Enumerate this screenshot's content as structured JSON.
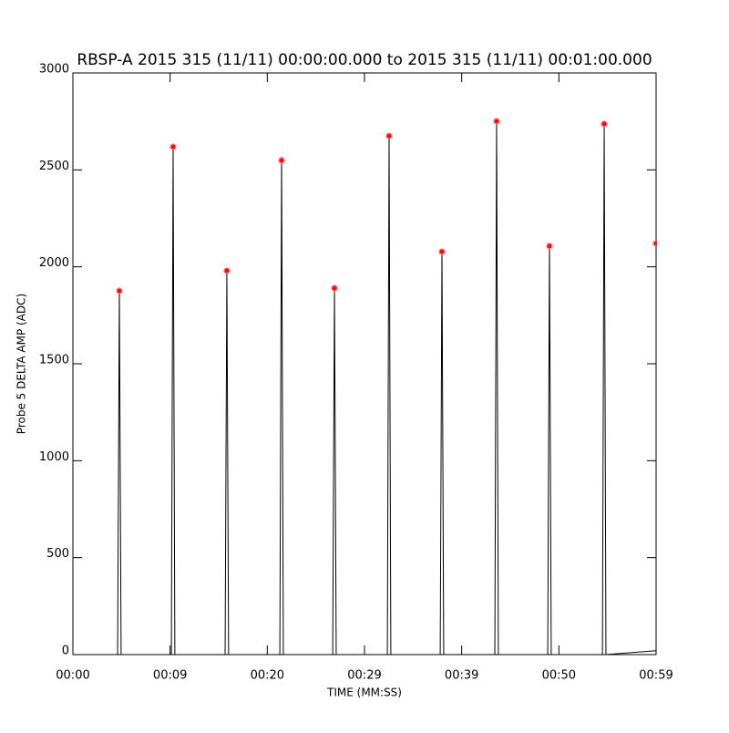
{
  "chart_data": {
    "type": "line",
    "title": "RBSP-A 2015 315 (11/11) 00:00:00.000 to 2015 315 (11/11) 00:01:00.000",
    "xlabel": "TIME (MM:SS)",
    "ylabel": "Probe 5 DELTA AMP (ADC)",
    "xlim": [
      0,
      60
    ],
    "ylim": [
      0,
      3000
    ],
    "xticks": [
      {
        "value": 0,
        "label": "00:00"
      },
      {
        "value": 10,
        "label": "00:09"
      },
      {
        "value": 20,
        "label": "00:20"
      },
      {
        "value": 30,
        "label": "00:29"
      },
      {
        "value": 40,
        "label": "00:39"
      },
      {
        "value": 50,
        "label": "00:50"
      },
      {
        "value": 60,
        "label": "00:59"
      }
    ],
    "yticks": [
      0,
      500,
      1000,
      1500,
      2000,
      2500,
      3000
    ],
    "grid": false,
    "series": [
      {
        "color": "#000000",
        "marker": "none",
        "x": [
          0,
          4.6,
          4.78,
          4.96,
          10.13,
          10.31,
          10.49,
          15.66,
          15.84,
          16.02,
          21.29,
          21.47,
          21.65,
          26.73,
          26.91,
          27.09,
          32.35,
          32.53,
          32.71,
          37.79,
          37.97,
          38.15,
          43.41,
          43.59,
          43.77,
          48.85,
          49.03,
          49.21,
          54.48,
          54.66,
          54.84,
          60
        ],
        "values": [
          0,
          0,
          1876,
          0,
          0,
          2619,
          0,
          0,
          1980,
          0,
          0,
          2549,
          0,
          0,
          1890,
          0,
          0,
          2675,
          0,
          0,
          2078,
          0,
          0,
          2751,
          0,
          0,
          2107,
          0,
          0,
          2737,
          0,
          20
        ]
      },
      {
        "color": "#ff0000",
        "marker": "star",
        "x": [
          4.78,
          10.31,
          15.84,
          21.47,
          26.91,
          32.53,
          37.97,
          43.59,
          49.03,
          54.66,
          60
        ],
        "values": [
          1876,
          2619,
          1980,
          2549,
          1890,
          2675,
          2078,
          2751,
          2107,
          2737,
          2121
        ]
      }
    ]
  }
}
